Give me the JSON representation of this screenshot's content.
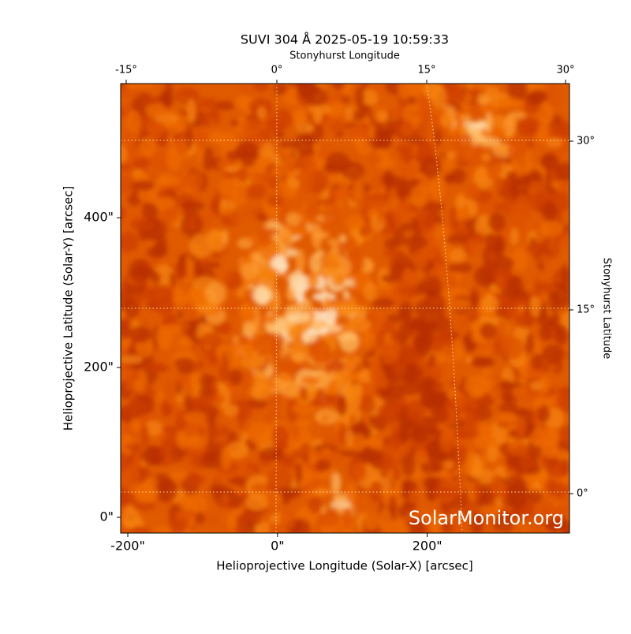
{
  "figure": {
    "title": "SUVI 304 Å 2025-05-19 10:59:33",
    "top_axis_label": "Stonyhurst Longitude",
    "right_axis_label": "Stonyhurst Latitude",
    "x_axis_label": "Helioprojective Longitude (Solar-X) [arcsec]",
    "y_axis_label": "Helioprojective Latitude (Solar-Y) [arcsec]",
    "xlim": [
      -209.5,
      390
    ],
    "ylim": [
      -21,
      579
    ],
    "xticks": [
      {
        "value": -200,
        "label": "-200\""
      },
      {
        "value": 0,
        "label": "0\""
      },
      {
        "value": 200,
        "label": "200\""
      }
    ],
    "yticks": [
      {
        "value": 0,
        "label": "0\""
      },
      {
        "value": 200,
        "label": "200\""
      },
      {
        "value": 400,
        "label": "400\""
      }
    ],
    "top_ticks": [
      {
        "value": -15,
        "label": "-15°"
      },
      {
        "value": 0,
        "label": "0°"
      },
      {
        "value": 15,
        "label": "15°"
      },
      {
        "value": 30,
        "label": "30°"
      }
    ],
    "right_ticks": [
      {
        "value": 0,
        "label": "0°"
      },
      {
        "value": 15,
        "label": "15°"
      },
      {
        "value": 30,
        "label": "30°"
      }
    ],
    "watermark": "SolarMonitor.org"
  }
}
